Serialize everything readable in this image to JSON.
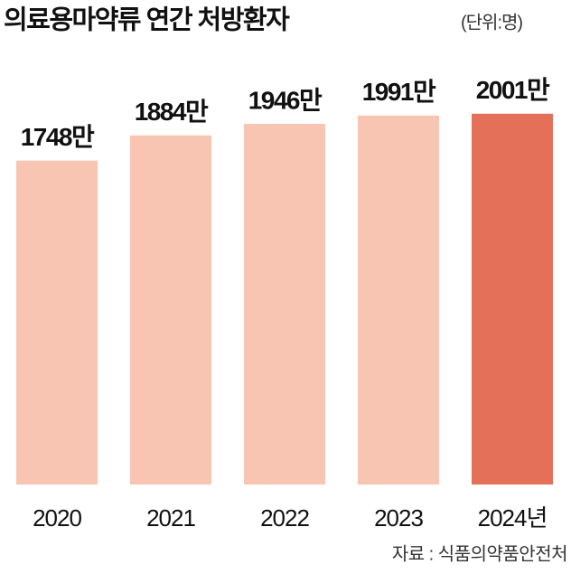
{
  "chart_data": {
    "type": "bar",
    "title": "의료용마약류 연간 처방환자",
    "subtitle": "(단위:명)",
    "categories": [
      "2020",
      "2021",
      "2022",
      "2023",
      "2024년"
    ],
    "values": [
      1748,
      1884,
      1946,
      1991,
      2001
    ],
    "value_labels": [
      "1748만",
      "1884만",
      "1946만",
      "1991만",
      "2001만"
    ],
    "colors": [
      "#f8c5b2",
      "#f8c5b2",
      "#f8c5b2",
      "#f8c5b2",
      "#e4705a"
    ],
    "source": "자료 : 식품의약품안전처"
  }
}
